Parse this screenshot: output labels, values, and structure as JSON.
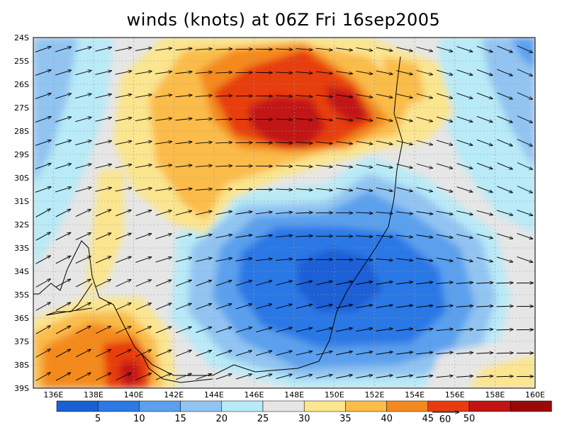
{
  "title": "winds (knots) at 06Z Fri 16sep2005",
  "map": {
    "lon_range": [
      135,
      160
    ],
    "lat_range": [
      -39,
      -24
    ],
    "lon_ticks": [
      "136E",
      "138E",
      "140E",
      "142E",
      "144E",
      "146E",
      "148E",
      "150E",
      "152E",
      "154E",
      "156E",
      "158E",
      "160E"
    ],
    "lat_ticks": [
      "24S",
      "25S",
      "26S",
      "27S",
      "28S",
      "29S",
      "30S",
      "31S",
      "32S",
      "33S",
      "34S",
      "35S",
      "36S",
      "37S",
      "38S",
      "39S"
    ]
  },
  "colorbar": {
    "colors": [
      "#1a5fd6",
      "#2c78e6",
      "#5aa0ee",
      "#92c4f2",
      "#b8eaf7",
      "#e6e6e6",
      "#fbe58e",
      "#fbbc48",
      "#f48a1c",
      "#e83c10",
      "#c21414",
      "#9b0808"
    ],
    "labels": [
      "5",
      "10",
      "15",
      "20",
      "25",
      "30",
      "35",
      "40",
      "45",
      "50"
    ]
  },
  "vector_legend": {
    "label": "60"
  }
}
